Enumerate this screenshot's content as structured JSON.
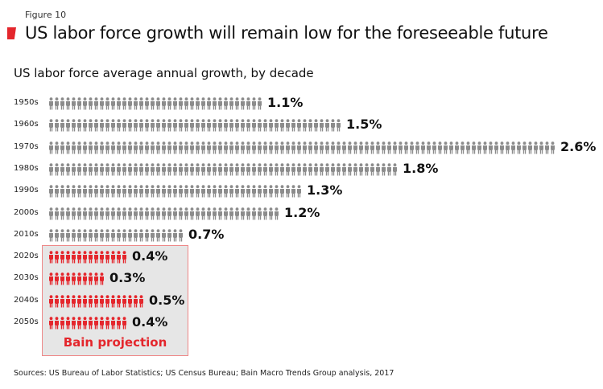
{
  "header": {
    "figure": "Figure 10",
    "title": "US labor force growth will remain low for the foreseeable future",
    "accent": "#e4262c"
  },
  "chart_data": {
    "type": "bar",
    "title": "US labor force average annual growth, by decade",
    "categories": [
      "1950s",
      "1960s",
      "1970s",
      "1980s",
      "1990s",
      "2000s",
      "2010s",
      "2020s",
      "2030s",
      "2040s",
      "2050s"
    ],
    "values": [
      1.1,
      1.5,
      2.6,
      1.8,
      1.3,
      1.2,
      0.7,
      0.4,
      0.3,
      0.5,
      0.4
    ],
    "labels": [
      "1.1%",
      "1.5%",
      "2.6%",
      "1.8%",
      "1.3%",
      "1.2%",
      "0.7%",
      "0.4%",
      "0.3%",
      "0.5%",
      "0.4%"
    ],
    "projected": [
      false,
      false,
      false,
      false,
      false,
      false,
      false,
      true,
      true,
      true,
      true
    ],
    "colors": {
      "actual": "#8c8c8c",
      "projected": "#e4262c"
    },
    "annotation": "Bain projection",
    "xlabel": "",
    "ylabel": "",
    "unit": "%"
  },
  "footer": {
    "sources": "Sources: US Bureau of Labor Statistics; US Census Bureau; Bain Macro Trends Group analysis, 2017"
  }
}
